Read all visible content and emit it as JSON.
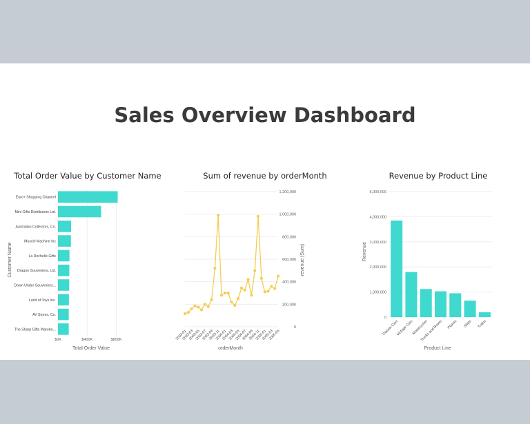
{
  "dashboard": {
    "title": "Sales Overview Dashboard"
  },
  "chart_data": [
    {
      "type": "bar",
      "orientation": "horizontal",
      "title": "Total Order Value by Customer Name",
      "xlabel": "Total Order Value",
      "ylabel": "Customer Name",
      "categories": [
        "Euro+ Shopping Channel",
        "Mini Gifts Distributors Ltd.",
        "Australian Collectors, Co.",
        "Muscle Machine Inc",
        "La Rochelle Gifts",
        "Dragon Souveniers, Ltd.",
        "Down Under Souveniers...",
        "Land of Toys Inc.",
        "AV Stores, Co.",
        "The Sharp Gifts Wareho..."
      ],
      "values": [
        820000,
        592000,
        180000,
        178000,
        158000,
        156000,
        154000,
        150000,
        148000,
        148000
      ],
      "xlim": [
        0,
        900000
      ],
      "xticks": [
        {
          "v": 0,
          "label": "$0K"
        },
        {
          "v": 400000,
          "label": "$400K"
        },
        {
          "v": 800000,
          "label": "$800K"
        }
      ],
      "color": "#3fd9cf"
    },
    {
      "type": "line",
      "title": "Sum of revenue by orderMonth",
      "xlabel": "orderMonth",
      "ylabel": "revenue (Sum)",
      "x": [
        "2003-01",
        "2003-02",
        "2003-03",
        "2003-04",
        "2003-05",
        "2003-06",
        "2003-07",
        "2003-08",
        "2003-09",
        "2003-10",
        "2003-11",
        "2003-12",
        "2004-01",
        "2004-02",
        "2004-03",
        "2004-04",
        "2004-05",
        "2004-06",
        "2004-07",
        "2004-08",
        "2004-09",
        "2004-10",
        "2004-11",
        "2004-12",
        "2005-01",
        "2005-02",
        "2005-03",
        "2005-04",
        "2005-05"
      ],
      "values": [
        116000,
        128000,
        160000,
        185000,
        175000,
        150000,
        200000,
        180000,
        240000,
        520000,
        990000,
        280000,
        300000,
        300000,
        220000,
        190000,
        250000,
        345000,
        325000,
        420000,
        280000,
        500000,
        980000,
        430000,
        310000,
        315000,
        360000,
        340000,
        450000
      ],
      "xtick_labels": [
        "2003-01",
        "2003-03",
        "2003-05",
        "2003-07",
        "2003-09",
        "2003-11",
        "2004-01",
        "2004-03",
        "2004-05",
        "2004-07",
        "2004-09",
        "2004-11",
        "2005-01",
        "2005-03",
        "2005-05"
      ],
      "ylim": [
        0,
        1200000
      ],
      "yticks": [
        {
          "v": 0,
          "label": "0"
        },
        {
          "v": 200000,
          "label": "200,000"
        },
        {
          "v": 400000,
          "label": "400,000"
        },
        {
          "v": 600000,
          "label": "600,000"
        },
        {
          "v": 800000,
          "label": "800,000"
        },
        {
          "v": 1000000,
          "label": "1,000,000"
        },
        {
          "v": 1200000,
          "label": "1,200,000"
        }
      ],
      "y_axis_side": "right",
      "color": "#f2cd51"
    },
    {
      "type": "bar",
      "title": "Revenue by Product Line",
      "xlabel": "Product Line",
      "ylabel": "Revenue",
      "categories": [
        "Classic Cars",
        "Vintage Cars",
        "Motorcycles",
        "Trucks and Buses",
        "Planes",
        "Ships",
        "Trains"
      ],
      "values": [
        3850000,
        1800000,
        1120000,
        1030000,
        950000,
        660000,
        200000
      ],
      "ylim": [
        0,
        5000000
      ],
      "yticks": [
        {
          "v": 0,
          "label": "0"
        },
        {
          "v": 1000000,
          "label": "1,000,000"
        },
        {
          "v": 2000000,
          "label": "2,000,000"
        },
        {
          "v": 3000000,
          "label": "3,000,000"
        },
        {
          "v": 4000000,
          "label": "4,000,000"
        },
        {
          "v": 5000000,
          "label": "5,000,000"
        }
      ],
      "color": "#3fd9cf"
    }
  ]
}
